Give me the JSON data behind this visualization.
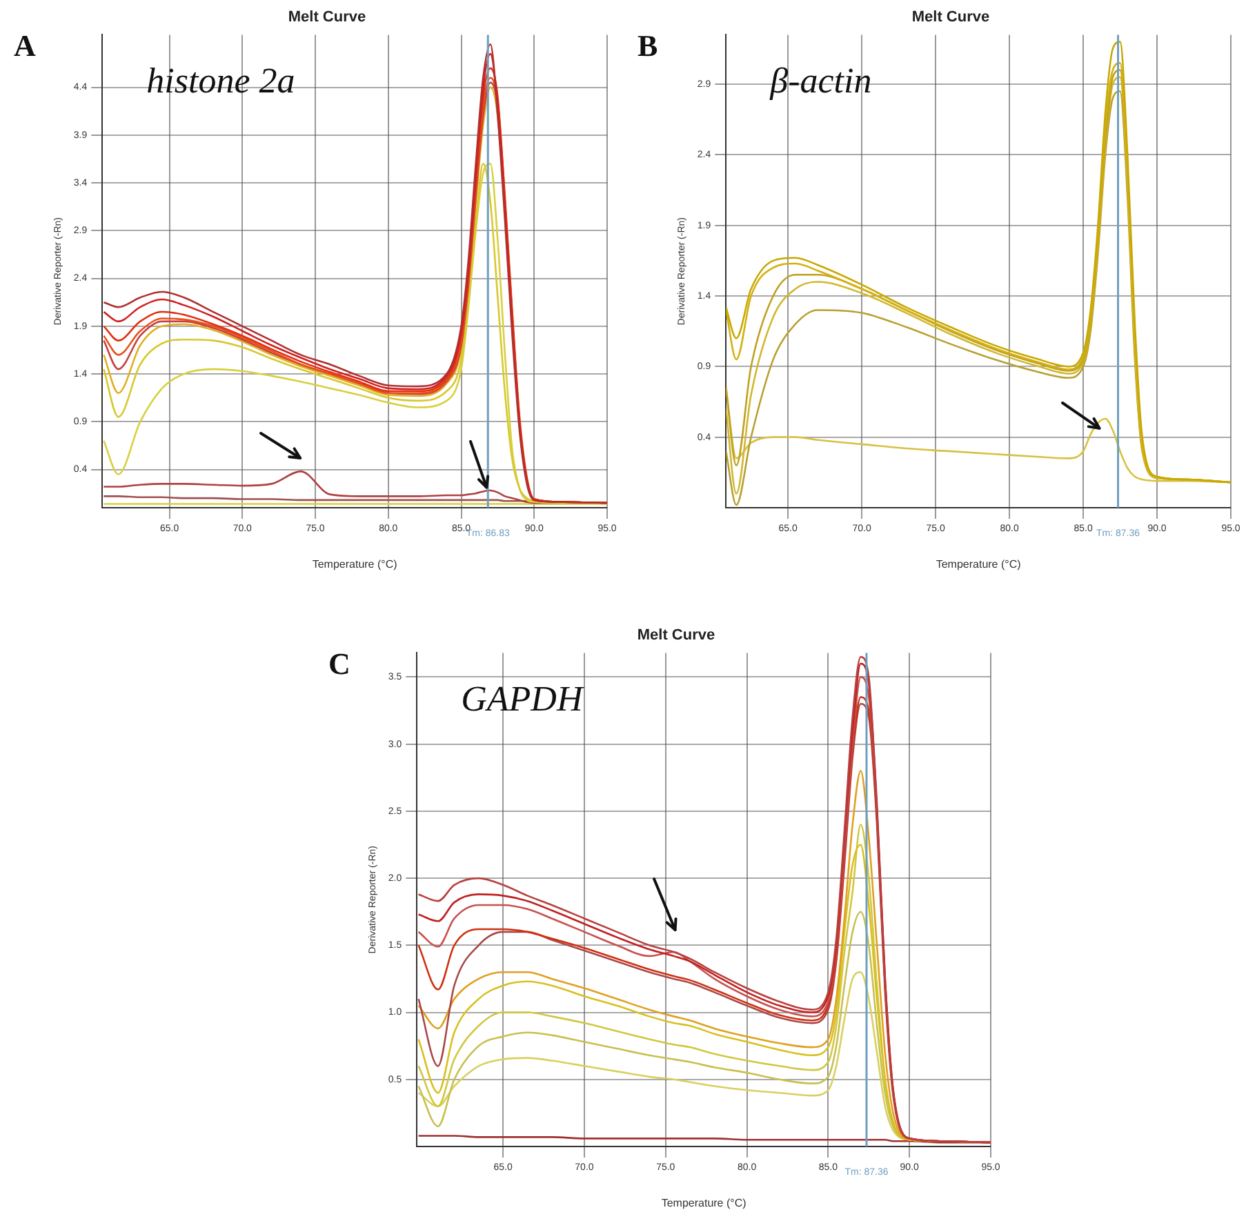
{
  "chart_data": [
    {
      "type": "line",
      "title": "Melt Curve",
      "xlabel": "Temperature (°C)",
      "ylabel": "Derivative Reporter (-Rn)",
      "annotations": [
        "A",
        "histone 2a"
      ],
      "marker": "none",
      "line_style": "solid",
      "grid": true,
      "xlim": [
        60.4,
        95
      ],
      "xticks": [
        {
          "value": 65,
          "label": "65.0"
        },
        {
          "value": 70,
          "label": "70.0"
        },
        {
          "value": 75,
          "label": "75.0"
        },
        {
          "value": 80,
          "label": "80.0"
        },
        {
          "value": 85,
          "label": "85.0"
        },
        {
          "value": 90,
          "label": "90.0"
        },
        {
          "value": 95,
          "label": "95.0"
        }
      ],
      "ylim": [
        0,
        4.95
      ],
      "yticks": [
        0.4,
        0.9,
        1.4,
        1.9,
        2.4,
        2.9,
        3.4,
        3.9,
        4.4
      ],
      "ref_lines": [
        {
          "axis": "x",
          "value": 86.83,
          "label": "Tm: 86.83",
          "color": "#6f9fbf"
        }
      ],
      "x": [
        60.5,
        61.5,
        63,
        64.5,
        66,
        68,
        70,
        72,
        74,
        76,
        78,
        80,
        82,
        84,
        85,
        85.5,
        86,
        86.5,
        87,
        87.5,
        88,
        88.5,
        89,
        89.5,
        90,
        92,
        95
      ],
      "series": [
        {
          "color": "#b03030",
          "values": [
            2.15,
            2.1,
            2.2,
            2.26,
            2.2,
            2.05,
            1.9,
            1.75,
            1.6,
            1.5,
            1.38,
            1.28,
            1.27,
            1.4,
            1.9,
            2.6,
            3.6,
            4.5,
            4.85,
            4.1,
            3.0,
            1.8,
            0.8,
            0.25,
            0.08,
            0.06,
            0.05
          ]
        },
        {
          "color": "#d02020",
          "values": [
            2.05,
            1.95,
            2.1,
            2.18,
            2.12,
            2.0,
            1.85,
            1.7,
            1.57,
            1.45,
            1.35,
            1.25,
            1.24,
            1.38,
            1.85,
            2.5,
            3.5,
            4.4,
            4.75,
            4.2,
            3.1,
            1.9,
            0.85,
            0.28,
            0.08,
            0.06,
            0.05
          ]
        },
        {
          "color": "#e03010",
          "values": [
            1.9,
            1.75,
            1.95,
            2.05,
            2.02,
            1.92,
            1.8,
            1.66,
            1.53,
            1.42,
            1.32,
            1.22,
            1.22,
            1.35,
            1.8,
            2.45,
            3.4,
            4.3,
            4.6,
            4.3,
            3.2,
            2.0,
            0.9,
            0.3,
            0.09,
            0.06,
            0.05
          ]
        },
        {
          "color": "#e8501a",
          "values": [
            1.8,
            1.6,
            1.85,
            1.98,
            1.97,
            1.9,
            1.78,
            1.64,
            1.5,
            1.4,
            1.3,
            1.2,
            1.2,
            1.33,
            1.75,
            2.4,
            3.3,
            4.2,
            4.5,
            4.25,
            3.25,
            2.05,
            0.95,
            0.32,
            0.09,
            0.06,
            0.05
          ]
        },
        {
          "color": "#c84040",
          "values": [
            1.75,
            1.45,
            1.8,
            1.95,
            1.95,
            1.88,
            1.76,
            1.62,
            1.5,
            1.4,
            1.3,
            1.2,
            1.19,
            1.32,
            1.7,
            2.35,
            3.25,
            4.1,
            4.45,
            4.2,
            3.2,
            2.0,
            0.9,
            0.3,
            0.09,
            0.06,
            0.05
          ]
        },
        {
          "color": "#e0b020",
          "values": [
            1.6,
            1.2,
            1.7,
            1.9,
            1.92,
            1.86,
            1.74,
            1.6,
            1.48,
            1.38,
            1.28,
            1.18,
            1.17,
            1.3,
            1.65,
            2.3,
            3.2,
            4.0,
            4.4,
            4.1,
            3.1,
            1.9,
            0.85,
            0.28,
            0.08,
            0.06,
            0.05
          ]
        },
        {
          "color": "#d8c830",
          "values": [
            1.45,
            0.95,
            1.5,
            1.72,
            1.76,
            1.75,
            1.68,
            1.56,
            1.45,
            1.35,
            1.25,
            1.15,
            1.12,
            1.22,
            1.55,
            2.2,
            3.0,
            3.6,
            3.2,
            2.2,
            1.2,
            0.5,
            0.2,
            0.1,
            0.07,
            0.05,
            0.05
          ]
        },
        {
          "color": "#d8d040",
          "values": [
            0.7,
            0.35,
            0.9,
            1.25,
            1.4,
            1.45,
            1.43,
            1.38,
            1.32,
            1.25,
            1.18,
            1.1,
            1.05,
            1.12,
            1.45,
            2.1,
            2.9,
            3.5,
            3.6,
            2.8,
            1.6,
            0.6,
            0.2,
            0.08,
            0.06,
            0.05,
            0.05
          ]
        },
        {
          "color": "#b04040",
          "values": [
            0.22,
            0.22,
            0.24,
            0.25,
            0.25,
            0.24,
            0.23,
            0.25,
            0.38,
            0.14,
            0.12,
            0.12,
            0.12,
            0.13,
            0.13,
            0.14,
            0.15,
            0.17,
            0.18,
            0.16,
            0.12,
            0.1,
            0.08,
            0.06,
            0.05,
            0.05,
            0.05
          ]
        },
        {
          "color": "#a05050",
          "values": [
            0.12,
            0.12,
            0.11,
            0.11,
            0.1,
            0.1,
            0.09,
            0.09,
            0.08,
            0.08,
            0.08,
            0.08,
            0.08,
            0.08,
            0.08,
            0.08,
            0.08,
            0.08,
            0.08,
            0.08,
            0.07,
            0.07,
            0.07,
            0.07,
            0.06,
            0.06,
            0.05
          ]
        },
        {
          "color": "#d8d040",
          "values": [
            0.04,
            0.04,
            0.04,
            0.04,
            0.04,
            0.04,
            0.04,
            0.04,
            0.04,
            0.04,
            0.04,
            0.04,
            0.04,
            0.04,
            0.04,
            0.04,
            0.04,
            0.04,
            0.04,
            0.04,
            0.04,
            0.04,
            0.04,
            0.04,
            0.04,
            0.04,
            0.04
          ]
        }
      ]
    },
    {
      "type": "line",
      "title": "Melt Curve",
      "xlabel": "Temperature (°C)",
      "ylabel": "Derivative Reporter (-Rn)",
      "annotations": [
        "B",
        "β-actin"
      ],
      "marker": "none",
      "line_style": "solid",
      "grid": true,
      "xlim": [
        60.8,
        95
      ],
      "xticks": [
        {
          "value": 65,
          "label": "65.0"
        },
        {
          "value": 70,
          "label": "70.0"
        },
        {
          "value": 75,
          "label": "75.0"
        },
        {
          "value": 80,
          "label": "80.0"
        },
        {
          "value": 85,
          "label": "85.0"
        },
        {
          "value": 90,
          "label": "90.0"
        },
        {
          "value": 95,
          "label": "95.0"
        }
      ],
      "ylim": [
        -0.1,
        3.25
      ],
      "yticks": [
        0.4,
        0.9,
        1.4,
        1.9,
        2.4,
        2.9
      ],
      "ref_lines": [
        {
          "axis": "x",
          "value": 87.36,
          "label": "Tm: 87.36",
          "color": "#6f9fbf"
        }
      ],
      "x": [
        60.8,
        61.5,
        62.5,
        64,
        65.5,
        67,
        70,
        73,
        76,
        79,
        82,
        84,
        85,
        85.5,
        86,
        86.5,
        87,
        87.5,
        88,
        88.5,
        89,
        90,
        92,
        95
      ],
      "series": [
        {
          "color": "#c8a800",
          "values": [
            1.32,
            1.1,
            1.45,
            1.65,
            1.67,
            1.62,
            1.48,
            1.32,
            1.18,
            1.05,
            0.95,
            0.9,
            1.0,
            1.3,
            1.9,
            2.7,
            3.15,
            3.2,
            2.4,
            1.2,
            0.4,
            0.12,
            0.1,
            0.08
          ]
        },
        {
          "color": "#d4b010",
          "values": [
            1.3,
            0.95,
            1.4,
            1.6,
            1.63,
            1.58,
            1.45,
            1.3,
            1.16,
            1.03,
            0.93,
            0.88,
            0.97,
            1.25,
            1.85,
            2.6,
            3.0,
            3.05,
            2.3,
            1.1,
            0.35,
            0.12,
            0.1,
            0.08
          ]
        },
        {
          "color": "#c0a020",
          "values": [
            0.75,
            0.2,
            0.9,
            1.4,
            1.55,
            1.55,
            1.45,
            1.3,
            1.15,
            1.02,
            0.92,
            0.87,
            0.95,
            1.2,
            1.8,
            2.5,
            2.95,
            3.0,
            2.3,
            1.1,
            0.35,
            0.12,
            0.1,
            0.08
          ]
        },
        {
          "color": "#d0b830",
          "values": [
            0.6,
            0.0,
            0.7,
            1.25,
            1.45,
            1.5,
            1.42,
            1.28,
            1.13,
            1.0,
            0.9,
            0.85,
            0.93,
            1.18,
            1.75,
            2.45,
            2.9,
            2.95,
            2.2,
            1.0,
            0.3,
            0.11,
            0.1,
            0.08
          ]
        },
        {
          "color": "#b8a030",
          "values": [
            0.3,
            -0.08,
            0.4,
            0.95,
            1.2,
            1.3,
            1.28,
            1.18,
            1.06,
            0.95,
            0.86,
            0.82,
            0.9,
            1.15,
            1.7,
            2.4,
            2.8,
            2.85,
            2.1,
            0.95,
            0.3,
            0.11,
            0.1,
            0.08
          ]
        },
        {
          "color": "#d8c040",
          "values": [
            0.75,
            0.25,
            0.36,
            0.4,
            0.4,
            0.38,
            0.35,
            0.32,
            0.3,
            0.28,
            0.26,
            0.25,
            0.3,
            0.42,
            0.5,
            0.53,
            0.45,
            0.3,
            0.18,
            0.12,
            0.1,
            0.09,
            0.09,
            0.08
          ]
        }
      ]
    },
    {
      "type": "line",
      "title": "Melt Curve",
      "xlabel": "Temperature (°C)",
      "ylabel": "Derivative Reporter (-Rn)",
      "annotations": [
        "C",
        "GAPDH"
      ],
      "marker": "none",
      "line_style": "solid",
      "grid": true,
      "xlim": [
        59.7,
        95
      ],
      "xticks": [
        {
          "value": 65,
          "label": "65.0"
        },
        {
          "value": 70,
          "label": "70.0"
        },
        {
          "value": 75,
          "label": "75.0"
        },
        {
          "value": 80,
          "label": "80.0"
        },
        {
          "value": 85,
          "label": "85.0"
        },
        {
          "value": 90,
          "label": "90.0"
        },
        {
          "value": 95,
          "label": "95.0"
        }
      ],
      "ylim": [
        0,
        3.68
      ],
      "yticks": [
        {
          "value": 0.5,
          "label": "0.5"
        },
        {
          "value": 1,
          "label": "1.0"
        },
        {
          "value": 1.5,
          "label": "1.5"
        },
        {
          "value": 2,
          "label": "2.0"
        },
        {
          "value": 2.5,
          "label": "2.5"
        },
        {
          "value": 3,
          "label": "3.0"
        },
        {
          "value": 3.5,
          "label": "3.5"
        }
      ],
      "ref_lines": [
        {
          "axis": "x",
          "value": 87.36,
          "label": "Tm: 87.36",
          "color": "#6f9fbf"
        }
      ],
      "x": [
        59.8,
        61,
        62,
        63.5,
        65,
        66.5,
        68,
        70,
        72,
        74,
        75.5,
        76.5,
        78,
        80,
        82,
        84,
        85,
        85.5,
        86,
        86.5,
        87,
        87.5,
        88,
        88.5,
        89,
        90,
        92,
        95
      ],
      "series": [
        {
          "color": "#b84040",
          "values": [
            1.88,
            1.83,
            1.95,
            2.0,
            1.95,
            1.87,
            1.8,
            1.7,
            1.6,
            1.5,
            1.45,
            1.4,
            1.3,
            1.18,
            1.08,
            1.02,
            1.15,
            1.55,
            2.35,
            3.2,
            3.65,
            3.5,
            2.5,
            1.2,
            0.4,
            0.06,
            0.04,
            0.03
          ]
        },
        {
          "color": "#c02020",
          "values": [
            1.73,
            1.68,
            1.82,
            1.88,
            1.87,
            1.83,
            1.76,
            1.66,
            1.56,
            1.47,
            1.42,
            1.38,
            1.28,
            1.15,
            1.05,
            1.0,
            1.12,
            1.5,
            2.3,
            3.1,
            3.6,
            3.45,
            2.55,
            1.25,
            0.42,
            0.06,
            0.04,
            0.03
          ]
        },
        {
          "color": "#c85050",
          "values": [
            1.6,
            1.49,
            1.7,
            1.8,
            1.8,
            1.77,
            1.7,
            1.6,
            1.5,
            1.42,
            1.45,
            1.38,
            1.25,
            1.12,
            1.02,
            0.97,
            1.08,
            1.45,
            2.2,
            3.0,
            3.5,
            3.35,
            2.5,
            1.25,
            0.42,
            0.06,
            0.04,
            0.03
          ]
        },
        {
          "color": "#d03010",
          "values": [
            1.5,
            1.17,
            1.5,
            1.62,
            1.62,
            1.6,
            1.55,
            1.48,
            1.4,
            1.32,
            1.27,
            1.24,
            1.17,
            1.07,
            0.98,
            0.94,
            1.05,
            1.4,
            2.15,
            2.95,
            3.35,
            3.25,
            2.45,
            1.2,
            0.4,
            0.06,
            0.04,
            0.03
          ]
        },
        {
          "color": "#a84848",
          "values": [
            1.1,
            0.6,
            1.2,
            1.5,
            1.6,
            1.6,
            1.54,
            1.46,
            1.38,
            1.3,
            1.25,
            1.22,
            1.15,
            1.05,
            0.96,
            0.92,
            1.02,
            1.38,
            2.1,
            2.9,
            3.3,
            3.2,
            2.4,
            1.15,
            0.38,
            0.06,
            0.04,
            0.03
          ]
        },
        {
          "color": "#e0a020",
          "values": [
            1.05,
            0.88,
            1.1,
            1.25,
            1.3,
            1.3,
            1.25,
            1.18,
            1.1,
            1.02,
            0.97,
            0.94,
            0.88,
            0.82,
            0.77,
            0.74,
            0.8,
            1.1,
            1.7,
            2.4,
            2.8,
            2.3,
            1.5,
            0.7,
            0.25,
            0.05,
            0.04,
            0.03
          ]
        },
        {
          "color": "#d8c020",
          "values": [
            0.8,
            0.4,
            0.85,
            1.1,
            1.2,
            1.23,
            1.2,
            1.12,
            1.05,
            0.97,
            0.92,
            0.9,
            0.84,
            0.78,
            0.72,
            0.68,
            0.74,
            1.0,
            1.6,
            2.1,
            2.25,
            1.8,
            1.1,
            0.5,
            0.18,
            0.05,
            0.04,
            0.03
          ]
        },
        {
          "color": "#d0c840",
          "values": [
            0.6,
            0.3,
            0.65,
            0.9,
            1.0,
            1.0,
            0.97,
            0.92,
            0.86,
            0.8,
            0.76,
            0.74,
            0.69,
            0.64,
            0.6,
            0.57,
            0.63,
            0.9,
            1.45,
            1.9,
            2.4,
            2.0,
            1.2,
            0.5,
            0.18,
            0.05,
            0.04,
            0.03
          ]
        },
        {
          "color": "#c8c050",
          "values": [
            0.45,
            0.15,
            0.5,
            0.75,
            0.82,
            0.85,
            0.83,
            0.78,
            0.73,
            0.68,
            0.65,
            0.63,
            0.59,
            0.55,
            0.5,
            0.47,
            0.52,
            0.75,
            1.2,
            1.6,
            1.75,
            1.5,
            0.9,
            0.4,
            0.15,
            0.05,
            0.04,
            0.03
          ]
        },
        {
          "color": "#d8d060",
          "values": [
            0.4,
            0.3,
            0.45,
            0.6,
            0.65,
            0.66,
            0.64,
            0.6,
            0.56,
            0.52,
            0.5,
            0.48,
            0.45,
            0.42,
            0.4,
            0.38,
            0.42,
            0.6,
            0.95,
            1.25,
            1.3,
            1.1,
            0.7,
            0.3,
            0.12,
            0.05,
            0.04,
            0.03
          ]
        },
        {
          "color": "#a03030",
          "values": [
            0.08,
            0.08,
            0.08,
            0.07,
            0.07,
            0.07,
            0.07,
            0.06,
            0.06,
            0.06,
            0.06,
            0.06,
            0.06,
            0.05,
            0.05,
            0.05,
            0.05,
            0.05,
            0.05,
            0.05,
            0.05,
            0.05,
            0.05,
            0.05,
            0.04,
            0.04,
            0.03,
            0.03
          ]
        }
      ]
    }
  ]
}
